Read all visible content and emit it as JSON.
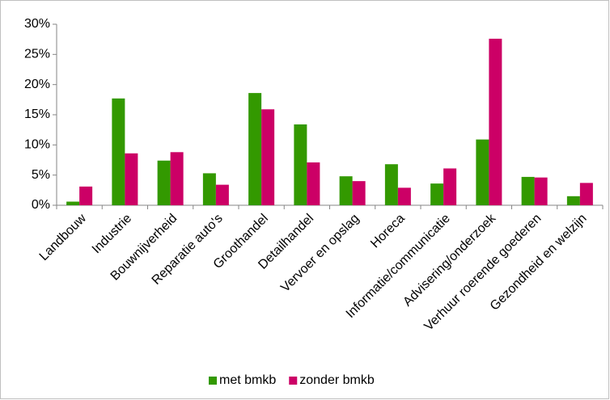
{
  "chart_data": {
    "type": "bar",
    "categories": [
      "Landbouw",
      "Industrie",
      "Bouwnijverheid",
      "Reparatie auto's",
      "Groothandel",
      "Detailhandel",
      "Vervoer en opslag",
      "Horeca",
      "Informatie/communicatie",
      "Advisering/onderzoek",
      "Verhuur roerende goederen",
      "Gezondheid en welzijn"
    ],
    "series": [
      {
        "name": "met bmkb",
        "color": "#339900",
        "values": [
          0.6,
          17.7,
          7.4,
          5.3,
          18.6,
          13.4,
          4.8,
          6.8,
          3.6,
          10.9,
          4.7,
          1.5
        ]
      },
      {
        "name": "zonder bmkb",
        "color": "#cc0066",
        "values": [
          3.1,
          8.6,
          8.8,
          3.4,
          15.9,
          7.1,
          4.0,
          2.9,
          6.1,
          27.6,
          4.6,
          3.7
        ]
      }
    ],
    "ylim": [
      0,
      30
    ],
    "yticks": [
      {
        "value": 0,
        "label": "0%"
      },
      {
        "value": 5,
        "label": "5%"
      },
      {
        "value": 10,
        "label": "10%"
      },
      {
        "value": 15,
        "label": "15%"
      },
      {
        "value": 20,
        "label": "20%"
      },
      {
        "value": 25,
        "label": "25%"
      },
      {
        "value": 30,
        "label": "30%"
      }
    ],
    "grid": false
  }
}
